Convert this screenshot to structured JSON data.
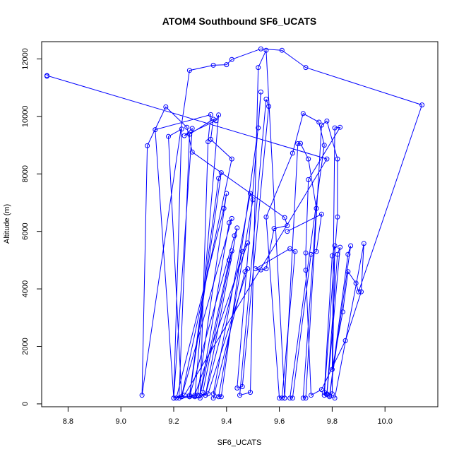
{
  "chart_data": {
    "type": "scatter",
    "title": "ATOM4 Southbound SF6_UCATS",
    "xlabel": "SF6_UCATS",
    "ylabel": "Altitude (m)",
    "xlim": [
      8.7,
      10.2
    ],
    "ylim": [
      -100,
      12600
    ],
    "xticks": [
      "8.8",
      "9.0",
      "9.2",
      "9.4",
      "9.6",
      "9.8",
      "10.0"
    ],
    "yticks": [
      "0",
      "2000",
      "4000",
      "6000",
      "8000",
      "10000",
      "12000"
    ],
    "grid": false,
    "series": [
      {
        "style": "lines+points",
        "color": "#0000ff",
        "x": [
          8.72,
          8.72,
          9.78,
          9.24,
          9.2,
          9.13,
          9.34,
          9.33,
          9.3,
          9.23,
          9.18,
          9.23,
          9.2,
          9.27,
          9.24,
          9.36,
          9.37,
          9.28,
          9.22,
          9.26,
          9.35,
          9.34,
          9.42,
          9.23,
          9.26,
          9.38,
          9.37,
          9.26,
          9.29,
          9.4,
          9.39,
          9.21,
          9.23,
          9.42,
          9.41,
          9.3,
          9.32,
          9.44,
          9.43,
          9.26,
          9.28,
          9.48,
          9.46,
          9.32,
          9.31,
          9.42,
          9.41,
          9.3,
          9.33,
          9.48,
          9.47,
          9.35,
          9.37,
          9.5,
          9.49,
          9.35,
          9.38,
          9.52,
          9.53,
          9.44,
          9.46,
          9.56,
          9.55,
          9.45,
          9.49,
          9.52,
          9.55,
          9.62,
          9.62,
          9.67,
          9.68,
          9.71,
          9.74,
          9.69,
          9.7,
          9.76,
          9.78,
          9.82,
          9.82,
          9.77,
          9.78,
          9.83,
          9.82,
          9.78,
          9.77,
          9.8,
          9.81,
          9.8,
          9.79,
          9.86,
          9.87,
          9.79,
          9.81,
          9.92,
          9.91,
          9.85,
          9.76,
          9.72,
          9.7,
          9.7,
          9.71,
          9.83,
          9.81,
          9.8,
          9.84,
          9.86,
          9.89,
          9.9,
          10.14,
          9.7,
          9.61,
          9.53,
          9.42,
          9.4,
          9.35,
          9.26,
          9.08,
          9.1,
          9.17,
          9.25,
          9.27,
          9.62,
          9.63,
          9.58,
          9.55,
          9.53,
          9.51,
          9.64,
          9.66,
          9.61,
          9.6,
          9.55,
          9.65,
          9.69,
          9.75,
          9.77,
          9.64,
          9.65,
          9.72,
          9.74,
          9.76,
          9.63
        ],
        "y": [
          11400,
          11420,
          8520,
          300,
          200,
          9540,
          10060,
          9120,
          200,
          250,
          9300,
          9560,
          200,
          9580,
          9330,
          9850,
          10050,
          250,
          200,
          9380,
          9900,
          9200,
          8520,
          250,
          250,
          8040,
          7850,
          300,
          300,
          7320,
          6800,
          200,
          250,
          6450,
          6300,
          300,
          300,
          6120,
          5850,
          250,
          300,
          5600,
          5300,
          300,
          400,
          5320,
          5000,
          300,
          350,
          4700,
          4600,
          200,
          250,
          7100,
          7320,
          350,
          250,
          9600,
          10850,
          550,
          600,
          10350,
          10600,
          300,
          400,
          11700,
          12300,
          200,
          200,
          9050,
          9060,
          8520,
          6800,
          200,
          200,
          9700,
          9840,
          8520,
          6500,
          300,
          320,
          5450,
          5200,
          350,
          400,
          5150,
          5500,
          350,
          300,
          5200,
          5500,
          250,
          200,
          5580,
          3900,
          2200,
          500,
          300,
          4650,
          5250,
          7800,
          9620,
          9600,
          1200,
          3200,
          4600,
          4200,
          3900,
          10400,
          11700,
          12300,
          12350,
          11980,
          11800,
          11780,
          11600,
          300,
          8980,
          10330,
          9620,
          8760,
          6480,
          6200,
          6100,
          4700,
          4660,
          4700,
          5400,
          5300,
          200,
          200,
          6500,
          8720,
          10100,
          9800,
          9000,
          200,
          200,
          5200,
          5300,
          6600,
          6000
        ]
      }
    ]
  }
}
